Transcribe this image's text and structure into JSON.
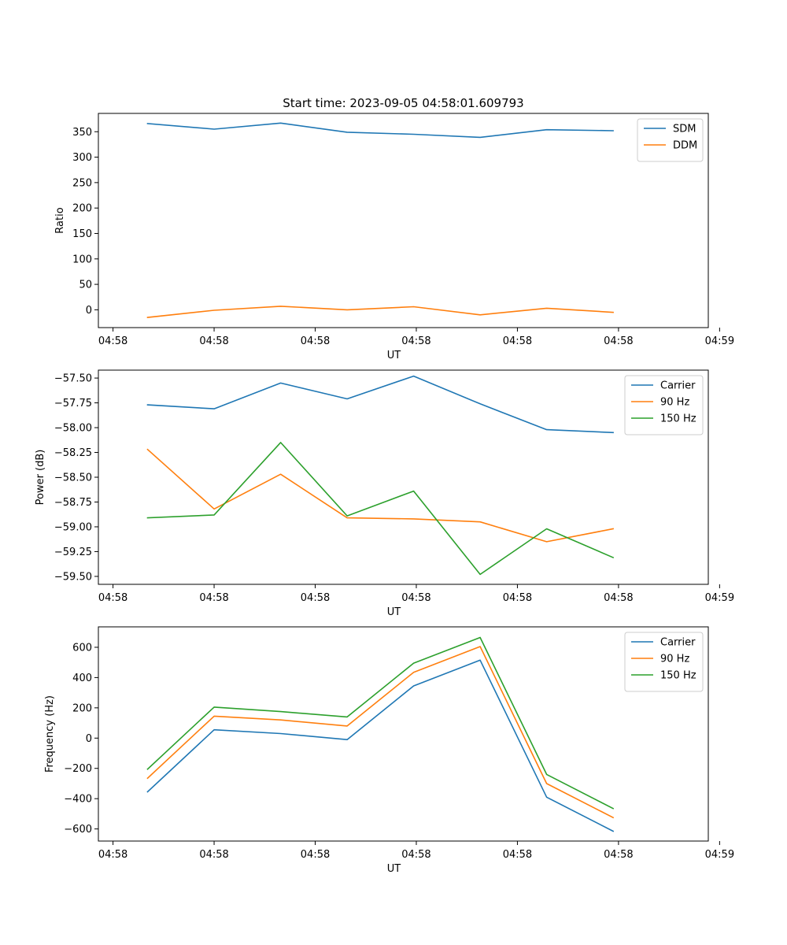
{
  "chart_data": [
    {
      "type": "line",
      "title": "Start time: 2023-09-05 04:58:01.609793",
      "xlabel": "UT",
      "ylabel": "Ratio",
      "x": [
        1,
        2,
        3,
        4,
        5,
        6,
        7,
        8
      ],
      "xlim": [
        0.26,
        9.43
      ],
      "x_ticks": [
        0.48,
        2,
        3.52,
        5.04,
        6.56,
        8.08,
        9.6
      ],
      "x_tick_labels": [
        "04:58",
        "04:58",
        "04:58",
        "04:58",
        "04:58",
        "04:58",
        "04:59"
      ],
      "ylim": [
        -35,
        386
      ],
      "y_ticks": [
        0,
        50,
        100,
        150,
        200,
        250,
        300,
        350
      ],
      "y_tick_labels": [
        "0",
        "50",
        "100",
        "150",
        "200",
        "250",
        "300",
        "350"
      ],
      "legend": "top-right",
      "grid": false,
      "series": [
        {
          "name": "SDM",
          "color": "#1f77b4",
          "values": [
            366,
            355,
            367,
            349,
            345,
            339,
            354,
            352
          ]
        },
        {
          "name": "DDM",
          "color": "#ff7f0e",
          "values": [
            -15,
            -1,
            7,
            0,
            6,
            -10,
            3,
            -5
          ]
        }
      ]
    },
    {
      "type": "line",
      "title": "",
      "xlabel": "UT",
      "ylabel": "Power (dB)",
      "x": [
        1,
        2,
        3,
        4,
        5,
        6,
        7,
        8
      ],
      "xlim": [
        0.26,
        9.43
      ],
      "x_ticks": [
        0.48,
        2,
        3.52,
        5.04,
        6.56,
        8.08,
        9.6
      ],
      "x_tick_labels": [
        "04:58",
        "04:58",
        "04:58",
        "04:58",
        "04:58",
        "04:58",
        "04:59"
      ],
      "ylim": [
        -59.58,
        -57.42
      ],
      "y_ticks": [
        -57.5,
        -57.75,
        -58.0,
        -58.25,
        -58.5,
        -58.75,
        -59.0,
        -59.25,
        -59.5
      ],
      "y_tick_labels": [
        "−57.50",
        "−57.75",
        "−58.00",
        "−58.25",
        "−58.50",
        "−58.75",
        "−59.00",
        "−59.25",
        "−59.50"
      ],
      "legend": "top-right",
      "grid": false,
      "series": [
        {
          "name": "Carrier",
          "color": "#1f77b4",
          "values": [
            -57.77,
            -57.81,
            -57.55,
            -57.71,
            -57.48,
            -57.76,
            -58.02,
            -58.05
          ]
        },
        {
          "name": "90 Hz",
          "color": "#ff7f0e",
          "values": [
            -58.22,
            -58.82,
            -58.47,
            -58.91,
            -58.92,
            -58.95,
            -59.15,
            -59.02
          ]
        },
        {
          "name": "150 Hz",
          "color": "#2ca02c",
          "values": [
            -58.91,
            -58.88,
            -58.15,
            -58.89,
            -58.64,
            -59.48,
            -59.02,
            -59.31
          ]
        }
      ]
    },
    {
      "type": "line",
      "title": "",
      "xlabel": "UT",
      "ylabel": "Frequency (Hz)",
      "x": [
        1,
        2,
        3,
        4,
        5,
        6,
        7,
        8
      ],
      "xlim": [
        0.26,
        9.43
      ],
      "x_ticks": [
        0.48,
        2,
        3.52,
        5.04,
        6.56,
        8.08,
        9.6
      ],
      "x_tick_labels": [
        "04:58",
        "04:58",
        "04:58",
        "04:58",
        "04:58",
        "04:58",
        "04:59"
      ],
      "ylim": [
        -680,
        735
      ],
      "y_ticks": [
        -600,
        -400,
        -200,
        0,
        200,
        400,
        600
      ],
      "y_tick_labels": [
        "−600",
        "−400",
        "−200",
        "0",
        "200",
        "400",
        "600"
      ],
      "legend": "top-right",
      "grid": false,
      "series": [
        {
          "name": "Carrier",
          "color": "#1f77b4",
          "values": [
            -355,
            55,
            30,
            -10,
            345,
            515,
            -390,
            -615
          ]
        },
        {
          "name": "90 Hz",
          "color": "#ff7f0e",
          "values": [
            -265,
            145,
            120,
            80,
            435,
            605,
            -300,
            -525
          ]
        },
        {
          "name": "150 Hz",
          "color": "#2ca02c",
          "values": [
            -205,
            205,
            175,
            140,
            495,
            665,
            -240,
            -465
          ]
        }
      ]
    }
  ]
}
